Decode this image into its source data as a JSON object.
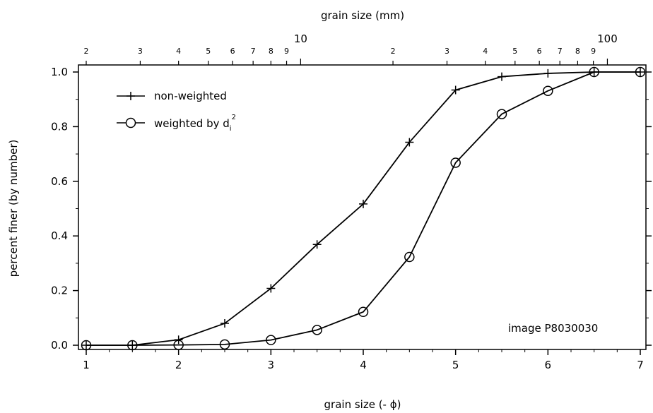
{
  "chart_data": {
    "type": "line",
    "xlabel": "grain size (- ϕ)",
    "ylabel": "percent finer (by number)",
    "top_xlabel": "grain size (mm)",
    "xlim": [
      1,
      7
    ],
    "ylim": [
      0,
      1
    ],
    "x_ticks": [
      "1",
      "2",
      "3",
      "4",
      "5",
      "6",
      "7"
    ],
    "y_ticks": [
      "0.0",
      "0.2",
      "0.4",
      "0.6",
      "0.8",
      "1.0"
    ],
    "top_ticks": [
      {
        "mm": 2,
        "label": "2"
      },
      {
        "mm": 3,
        "label": "3"
      },
      {
        "mm": 4,
        "label": "4"
      },
      {
        "mm": 5,
        "label": "5"
      },
      {
        "mm": 6,
        "label": "6"
      },
      {
        "mm": 7,
        "label": "7"
      },
      {
        "mm": 8,
        "label": "8"
      },
      {
        "mm": 9,
        "label": "9"
      },
      {
        "mm": 10,
        "label": "10"
      },
      {
        "mm": 20,
        "label": "2"
      },
      {
        "mm": 30,
        "label": "3"
      },
      {
        "mm": 40,
        "label": "4"
      },
      {
        "mm": 50,
        "label": "5"
      },
      {
        "mm": 60,
        "label": "6"
      },
      {
        "mm": 70,
        "label": "7"
      },
      {
        "mm": 80,
        "label": "8"
      },
      {
        "mm": 90,
        "label": "9"
      },
      {
        "mm": 100,
        "label": "100"
      }
    ],
    "top_axis_scale": "log",
    "grid": false,
    "legend_position": "top-left",
    "annotation": "image P8030030",
    "series": [
      {
        "name": "non-weighted",
        "marker": "plus",
        "x": [
          1,
          1.5,
          2,
          2.5,
          3,
          3.5,
          4,
          4.5,
          5,
          5.5,
          6,
          6.5,
          7
        ],
        "y": [
          0,
          0,
          0.02,
          0.08,
          0.208,
          0.369,
          0.517,
          0.743,
          0.934,
          0.983,
          0.995,
          1.0,
          1.0
        ]
      },
      {
        "name": "weighted by d",
        "name_subscript": "i",
        "name_superscript": "2",
        "marker": "circle",
        "x": [
          1,
          1.5,
          2,
          2.5,
          3,
          3.5,
          4,
          4.5,
          5,
          5.5,
          6,
          6.5,
          7
        ],
        "y": [
          0,
          0,
          0.001,
          0.003,
          0.019,
          0.056,
          0.122,
          0.323,
          0.668,
          0.846,
          0.931,
          1.0,
          1.0
        ]
      }
    ],
    "colors": {
      "line": "#000000",
      "background": "#ffffff"
    }
  }
}
